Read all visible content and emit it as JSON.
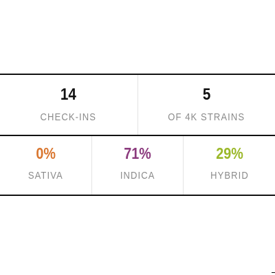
{
  "summary": {
    "checkins": {
      "value": "14",
      "label": "CHECK-INS"
    },
    "strains": {
      "value": "5",
      "label": "OF 4K STRAINS"
    }
  },
  "breakdown": [
    {
      "key": "sativa",
      "value": "0%",
      "label": "SATIVA",
      "color": "#d9762f"
    },
    {
      "key": "indica",
      "value": "71%",
      "label": "INDICA",
      "color": "#8b3a7d"
    },
    {
      "key": "hybrid",
      "value": "29%",
      "label": "HYBRID",
      "color": "#9bb829"
    }
  ],
  "colors": {
    "value_default": "#111111",
    "label": "#8a8a8a",
    "rule": "#111111",
    "cell_divider": "#e3e3e3"
  }
}
